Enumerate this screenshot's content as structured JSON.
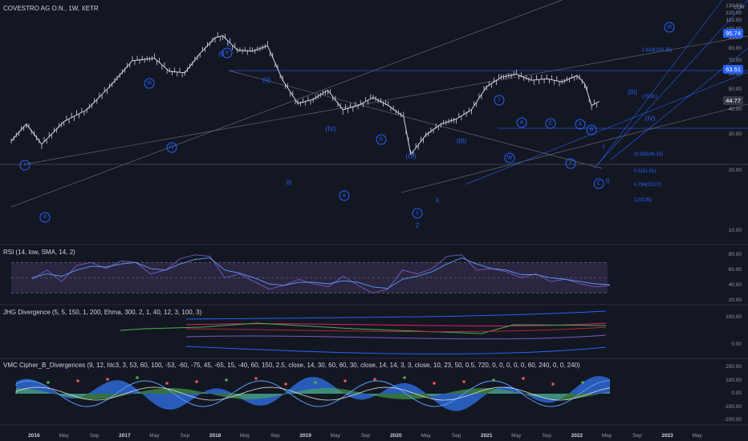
{
  "chart_data": [
    {
      "type": "line",
      "title": "COVESTRO AG O.N., 1W, XETR",
      "currency": "EUR",
      "y_scale": "log",
      "y_ticks": [
        "130.00",
        "120.00",
        "110.00",
        "100.00",
        "90.00",
        "80.00",
        "70.00",
        "60.00",
        "50.00",
        "40.00",
        "30.00",
        "20.00",
        "10.00"
      ],
      "x_ticks": [
        "2016",
        "May",
        "Sep",
        "2017",
        "May",
        "Sep",
        "2018",
        "May",
        "Sep",
        "2019",
        "May",
        "Sep",
        "2020",
        "May",
        "Sep",
        "2021",
        "May",
        "Sep",
        "2022",
        "May",
        "Sep",
        "2023",
        "May"
      ],
      "x_ticks_bold": [
        "2016",
        "2017",
        "2018",
        "2019",
        "2020",
        "2021",
        "2022",
        "2023"
      ],
      "x_range": [
        "2015-10",
        "2023-08"
      ],
      "series": [
        {
          "x": [
            "2015-10",
            "2015-12",
            "2016-02",
            "2016-05",
            "2016-08",
            "2016-11",
            "2017-02",
            "2017-05",
            "2017-07",
            "2017-09",
            "2017-11",
            "2018-01",
            "2018-02",
            "2018-04",
            "2018-06",
            "2018-08",
            "2018-10",
            "2018-12",
            "2019-02",
            "2019-04",
            "2019-06",
            "2019-08",
            "2019-10",
            "2019-12",
            "2020-02",
            "2020-03",
            "2020-05",
            "2020-07",
            "2020-09",
            "2020-11",
            "2021-01",
            "2021-03",
            "2021-05",
            "2021-07",
            "2021-09",
            "2021-11",
            "2022-01",
            "2022-02",
            "2022-03",
            "2022-04"
          ],
          "values": [
            28,
            34,
            27,
            35,
            40,
            52,
            70,
            72,
            62,
            61,
            76,
            91,
            93,
            79,
            78,
            83,
            56,
            43,
            45,
            50,
            40,
            42,
            46,
            42,
            37,
            24,
            30,
            34,
            36,
            40,
            52,
            58,
            60,
            56,
            57,
            55,
            59,
            54,
            42,
            44
          ]
        }
      ],
      "price_labels": [
        {
          "text": "95.74",
          "value": 95.74
        },
        {
          "text": "63.51",
          "value": 63.51
        },
        {
          "text": "44.77",
          "value": 44.77
        }
      ],
      "fib_labels": [
        "1.618(103.25)",
        "(78.91)",
        "(0.382(48.15)",
        "0.5(51.61)",
        "0.786(33.07)",
        "1(33.95)"
      ],
      "wave_labels": [
        "1",
        "I",
        "II",
        "III",
        "IV",
        "V",
        "(i)",
        "(ii)",
        "(iii)",
        "(iv)",
        "(v)",
        "i",
        "ii",
        "iii",
        "iv",
        "v",
        "a",
        "b",
        "c",
        "A",
        "B",
        "C",
        "W",
        "X",
        "Y",
        "2",
        "3"
      ]
    },
    {
      "type": "line",
      "title": "RSI (14, low, SMA, 14, 2)",
      "y_ticks": [
        "80.00",
        "60.00",
        "40.00",
        "20.00"
      ],
      "series": [
        {
          "name": "RSI",
          "values": [
            48,
            60,
            45,
            66,
            70,
            62,
            72,
            70,
            55,
            60,
            75,
            80,
            78,
            50,
            55,
            45,
            35,
            40,
            48,
            42,
            38,
            52,
            40,
            30,
            35,
            60,
            55,
            62,
            78,
            80,
            60,
            62,
            58,
            50,
            55,
            45,
            48,
            42,
            38,
            40
          ]
        },
        {
          "name": "SMA",
          "values": [
            50,
            55,
            52,
            60,
            65,
            64,
            68,
            70,
            62,
            60,
            68,
            74,
            76,
            60,
            56,
            50,
            42,
            40,
            44,
            44,
            42,
            46,
            44,
            38,
            36,
            48,
            52,
            58,
            68,
            76,
            68,
            62,
            60,
            54,
            54,
            50,
            48,
            45,
            42,
            41
          ]
        }
      ]
    },
    {
      "type": "line",
      "title": "JHG Divergence (5, 5, 150, 1, 200, Ehma, 300, 2, 1, 40, 12, 3, 100, 3)",
      "y_ticks": [
        "100.00",
        "0.00"
      ]
    },
    {
      "type": "area",
      "title": "VMC Cipher_B_Divergences (9, 12, hlc3, 3, 53, 60, 100, -53, -60, -75, 45, -65, 15, -40, 60, 150, 2.5, close, 14, 30, 60, 60, 30, close, 14, 14, 3, 3, close, 10, 23, 50, 0.5, 720, 0, 0, 0, 0, 0, 60, 240, 0, 0, 240)",
      "y_ticks": [
        "200.00",
        "100.00",
        "0.00",
        "-100.00",
        "-200.00"
      ]
    }
  ],
  "colors": {
    "background": "#131722",
    "candle": "#d1d4dc",
    "wave": "#2962ff",
    "trendline": "#787b86",
    "rsi": "#7e57c2",
    "rsi_band": "#2a2640"
  }
}
